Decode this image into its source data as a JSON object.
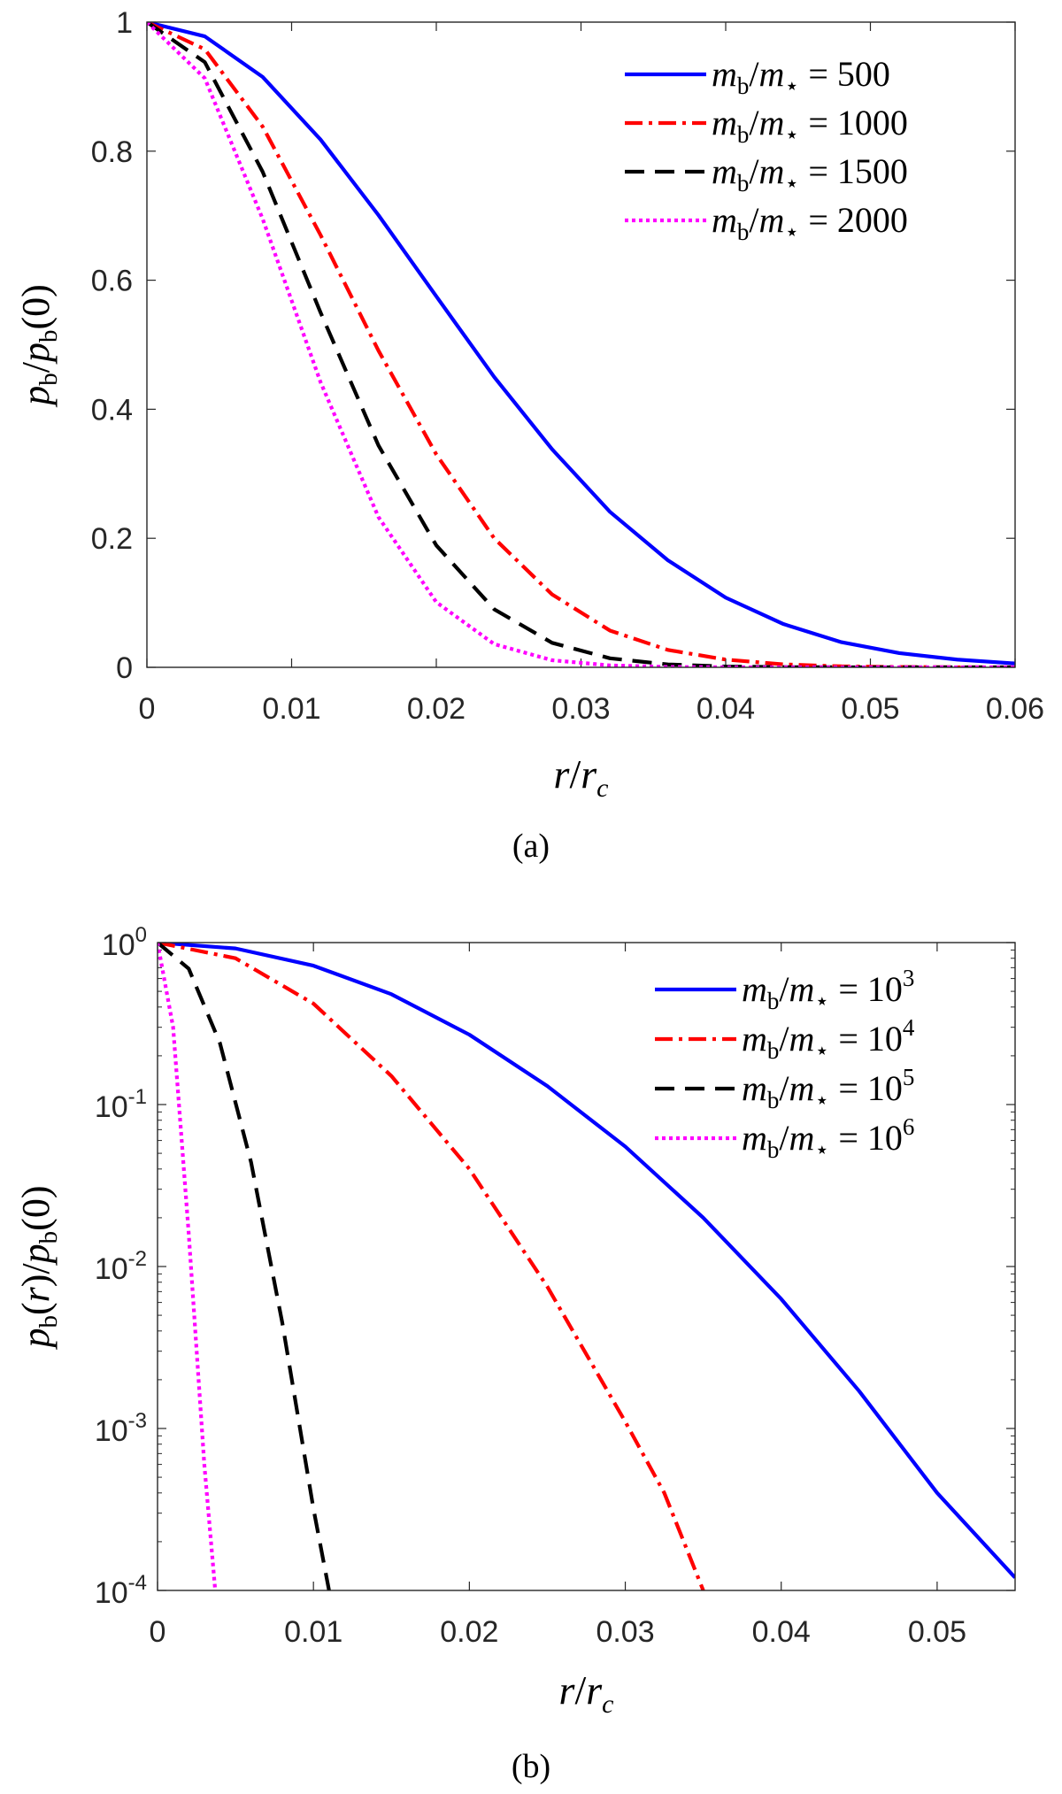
{
  "chart_data": [
    {
      "type": "line",
      "panel_label": "(a)",
      "yscale": "linear",
      "xlim": [
        0,
        0.06
      ],
      "ylim": [
        0,
        1
      ],
      "xticks": [
        0,
        0.01,
        0.02,
        0.03,
        0.04,
        0.05,
        0.06
      ],
      "xtick_labels": [
        "0",
        "0.01",
        "0.02",
        "0.03",
        "0.04",
        "0.05",
        "0.06"
      ],
      "yticks": [
        0,
        0.2,
        0.4,
        0.6,
        0.8,
        1
      ],
      "ytick_labels": [
        "0",
        "0.2",
        "0.4",
        "0.6",
        "0.8",
        "1"
      ],
      "xlabel": "r/r_c",
      "ylabel": "p_b/p_b(0)",
      "grid": false,
      "legend_position": "top-right",
      "series": [
        {
          "name": "m_b/m_⋆ = 500",
          "legend_prefix": "m",
          "legend_value": "500",
          "color": "#0000ff",
          "style": "solid",
          "x": [
            0,
            0.004,
            0.008,
            0.012,
            0.016,
            0.02,
            0.024,
            0.028,
            0.032,
            0.036,
            0.04,
            0.044,
            0.048,
            0.052,
            0.056,
            0.06
          ],
          "y": [
            1,
            0.978,
            0.915,
            0.818,
            0.701,
            0.575,
            0.45,
            0.338,
            0.241,
            0.166,
            0.108,
            0.067,
            0.039,
            0.022,
            0.012,
            0.006
          ]
        },
        {
          "name": "m_b/m_⋆ = 1000",
          "legend_prefix": "m",
          "legend_value": "1000",
          "color": "#ff0000",
          "style": "dashdot",
          "x": [
            0,
            0.004,
            0.008,
            0.012,
            0.016,
            0.02,
            0.024,
            0.028,
            0.032,
            0.036,
            0.04,
            0.044,
            0.048,
            0.052,
            0.056,
            0.06
          ],
          "y": [
            1,
            0.958,
            0.838,
            0.67,
            0.491,
            0.33,
            0.2,
            0.113,
            0.057,
            0.027,
            0.012,
            0.0046,
            0.0015,
            0.0005,
            0.0001,
            0
          ]
        },
        {
          "name": "m_b/m_⋆ = 1500",
          "legend_prefix": "m",
          "legend_value": "1500",
          "color": "#000000",
          "style": "dashed",
          "x": [
            0,
            0.004,
            0.008,
            0.012,
            0.016,
            0.02,
            0.024,
            0.028,
            0.032,
            0.036,
            0.04,
            0.044,
            0.048,
            0.052,
            0.056,
            0.06
          ],
          "y": [
            1,
            0.938,
            0.768,
            0.55,
            0.344,
            0.189,
            0.09,
            0.038,
            0.014,
            0.0045,
            0.0013,
            0.0003,
            0.0001,
            0,
            0,
            0
          ]
        },
        {
          "name": "m_b/m_⋆ = 2000",
          "legend_prefix": "m",
          "legend_value": "2000",
          "color": "#ff00ff",
          "style": "dotted",
          "x": [
            0,
            0.004,
            0.008,
            0.012,
            0.016,
            0.02,
            0.024,
            0.028,
            0.032,
            0.036,
            0.04,
            0.044,
            0.048,
            0.052,
            0.056,
            0.06
          ],
          "y": [
            1,
            0.913,
            0.695,
            0.442,
            0.233,
            0.101,
            0.036,
            0.011,
            0.003,
            0.0006,
            0.0001,
            0,
            0,
            0,
            0,
            0
          ]
        }
      ]
    },
    {
      "type": "line",
      "panel_label": "(b)",
      "yscale": "log",
      "xlim": [
        0,
        0.055
      ],
      "ylim": [
        0.0001,
        1
      ],
      "xticks": [
        0,
        0.01,
        0.02,
        0.03,
        0.04,
        0.05
      ],
      "xtick_labels": [
        "0",
        "0.01",
        "0.02",
        "0.03",
        "0.04",
        "0.05"
      ],
      "yticks": [
        1,
        0.1,
        0.01,
        0.001,
        0.0001
      ],
      "ytick_base": "10",
      "ytick_exponents": [
        "0",
        "-1",
        "-2",
        "-3",
        "-4"
      ],
      "xlabel": "r/r_c",
      "ylabel": "p_b(r)/p_b(0)",
      "grid": false,
      "legend_position": "top-right",
      "series": [
        {
          "name": "m_b/m_⋆ = 10^3",
          "legend_prefix": "m",
          "legend_base": "10",
          "legend_exp": "3",
          "color": "#0000ff",
          "style": "solid",
          "x": [
            0,
            0.005,
            0.01,
            0.015,
            0.02,
            0.025,
            0.03,
            0.035,
            0.04,
            0.045,
            0.05,
            0.055
          ],
          "y": [
            1,
            0.92,
            0.72,
            0.48,
            0.27,
            0.13,
            0.055,
            0.02,
            0.0063,
            0.0017,
            0.0004,
            0.00012
          ]
        },
        {
          "name": "m_b/m_⋆ = 10^4",
          "legend_prefix": "m",
          "legend_base": "10",
          "legend_exp": "4",
          "color": "#ff0000",
          "style": "dashdot",
          "x": [
            0,
            0.005,
            0.01,
            0.015,
            0.02,
            0.025,
            0.03,
            0.0325,
            0.035
          ],
          "y": [
            1,
            0.8,
            0.42,
            0.15,
            0.04,
            0.0075,
            0.0011,
            0.0004,
            0.0001
          ]
        },
        {
          "name": "m_b/m_⋆ = 10^5",
          "legend_prefix": "m",
          "legend_base": "10",
          "legend_exp": "5",
          "color": "#000000",
          "style": "dashed",
          "x": [
            0,
            0.002,
            0.004,
            0.006,
            0.008,
            0.01,
            0.011
          ],
          "y": [
            1,
            0.69,
            0.24,
            0.044,
            0.0045,
            0.00032,
            0.0001
          ]
        },
        {
          "name": "m_b/m_⋆ = 10^6",
          "legend_prefix": "m",
          "legend_base": "10",
          "legend_exp": "6",
          "color": "#ff00ff",
          "style": "dotted",
          "x": [
            0,
            0.001,
            0.002,
            0.003,
            0.0037
          ],
          "y": [
            1,
            0.3,
            0.016,
            0.0006,
            0.0001
          ]
        }
      ]
    }
  ]
}
